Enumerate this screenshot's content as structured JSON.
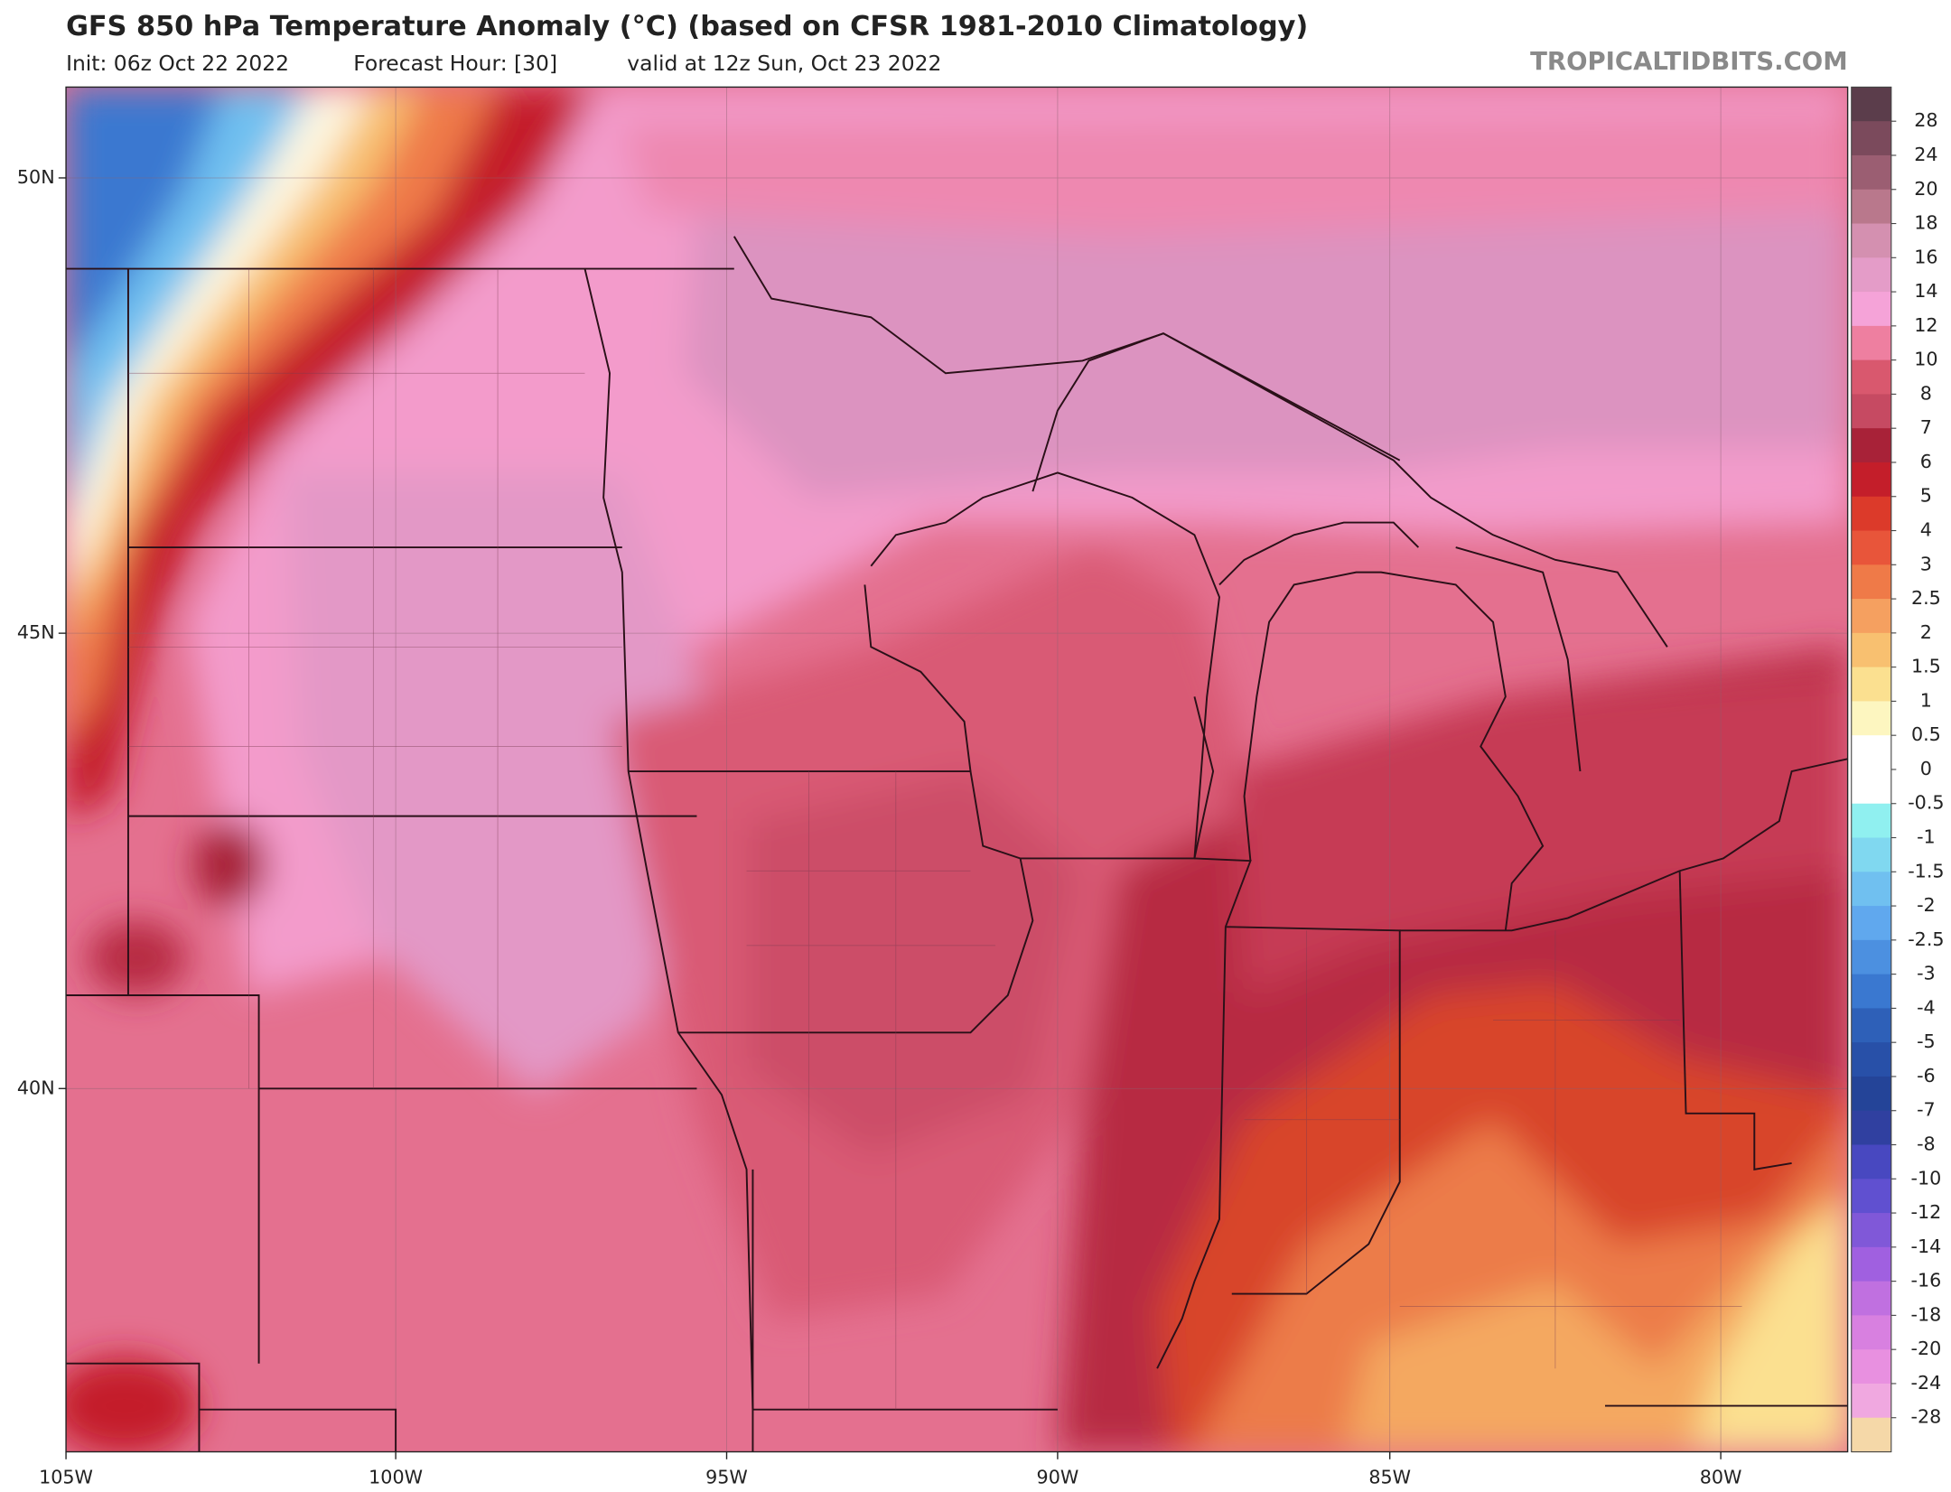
{
  "header": {
    "title": "GFS 850 hPa Temperature Anomaly (°C) (based on CFSR 1981-2010 Climatology)",
    "init": "Init: 06z Oct 22 2022",
    "forecast_hour": "Forecast Hour: [30]",
    "valid": "valid at 12z Sun, Oct 23 2022",
    "credit": "TROPICALTIDBITS.COM"
  },
  "map": {
    "lat_labels": [
      "50N",
      "45N",
      "40N"
    ],
    "lon_labels": [
      "105W",
      "100W",
      "95W",
      "90W",
      "85W",
      "80W"
    ]
  },
  "colorbar": {
    "labels": [
      "28",
      "24",
      "20",
      "18",
      "16",
      "14",
      "12",
      "10",
      "8",
      "7",
      "6",
      "5",
      "4",
      "3",
      "2.5",
      "2",
      "1.5",
      "1",
      "0.5",
      "0",
      "-0.5",
      "-1",
      "-1.5",
      "-2",
      "-2.5",
      "-3",
      "-4",
      "-5",
      "-6",
      "-7",
      "-8",
      "-10",
      "-12",
      "-14",
      "-16",
      "-18",
      "-20",
      "-24",
      "-28"
    ],
    "colors": [
      "#5b3d4b",
      "#7b4a5c",
      "#9b5e72",
      "#b9788c",
      "#d490b0",
      "#e49cc8",
      "#f5a3d8",
      "#ee7fa0",
      "#d9586e",
      "#c64a62",
      "#a82238",
      "#c41e2a",
      "#dc3a2a",
      "#e8553a",
      "#ef7a48",
      "#f5a060",
      "#f8c070",
      "#fbe090",
      "#fdf6c0",
      "#ffffff",
      "#ffffff",
      "#90f0f0",
      "#80d8f0",
      "#70c0f0",
      "#60a8ee",
      "#4c90e0",
      "#3a78d0",
      "#2e60b8",
      "#2850a8",
      "#244498",
      "#3040a0",
      "#4848c0",
      "#6050d0",
      "#8058d8",
      "#a060e0",
      "#c070e0",
      "#d880e0",
      "#e890e0",
      "#f0a8e0",
      "#f5d8a8"
    ]
  }
}
